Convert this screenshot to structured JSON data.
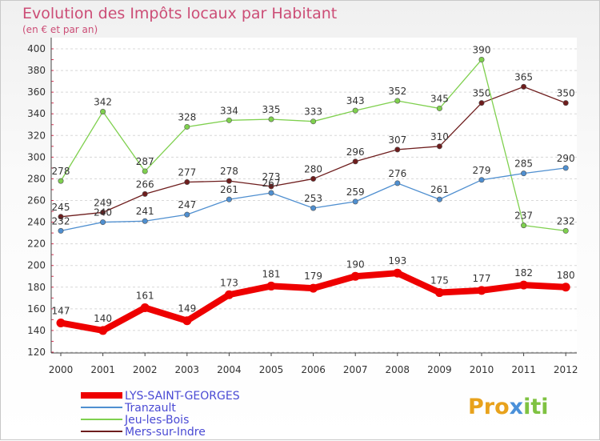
{
  "chart_data": {
    "type": "line",
    "title": "Evolution des Impôts locaux par Habitant",
    "subtitle": "(en € et par an)",
    "categories": [
      "2000",
      "2001",
      "2002",
      "2003",
      "2004",
      "2005",
      "2006",
      "2007",
      "2008",
      "2009",
      "2010",
      "2011",
      "2012"
    ],
    "ylim": [
      120,
      400
    ],
    "yticks": [
      120,
      140,
      160,
      180,
      200,
      220,
      240,
      260,
      280,
      300,
      320,
      340,
      360,
      380,
      400
    ],
    "grid": "horizontal dashed",
    "legend_position": "bottom-left",
    "series": [
      {
        "name": "LYS-SAINT-GEORGES",
        "color": "#ee0000",
        "values": [
          147,
          140,
          161,
          149,
          173,
          181,
          179,
          190,
          193,
          175,
          177,
          182,
          180
        ]
      },
      {
        "name": "Tranzault",
        "color": "#4f8fd0",
        "values": [
          232,
          240,
          241,
          247,
          261,
          267,
          253,
          259,
          276,
          261,
          279,
          285,
          290
        ]
      },
      {
        "name": "Jeu-les-Bois",
        "color": "#7fd04e",
        "values": [
          278,
          342,
          287,
          328,
          334,
          335,
          333,
          343,
          352,
          345,
          390,
          237,
          232
        ]
      },
      {
        "name": "Mers-sur-Indre",
        "color": "#6e1d1d",
        "values": [
          245,
          249,
          266,
          277,
          278,
          273,
          280,
          296,
          307,
          310,
          350,
          365,
          350
        ]
      }
    ]
  },
  "logo": {
    "text": "Proxiti",
    "icon": "proxiti-logo"
  }
}
